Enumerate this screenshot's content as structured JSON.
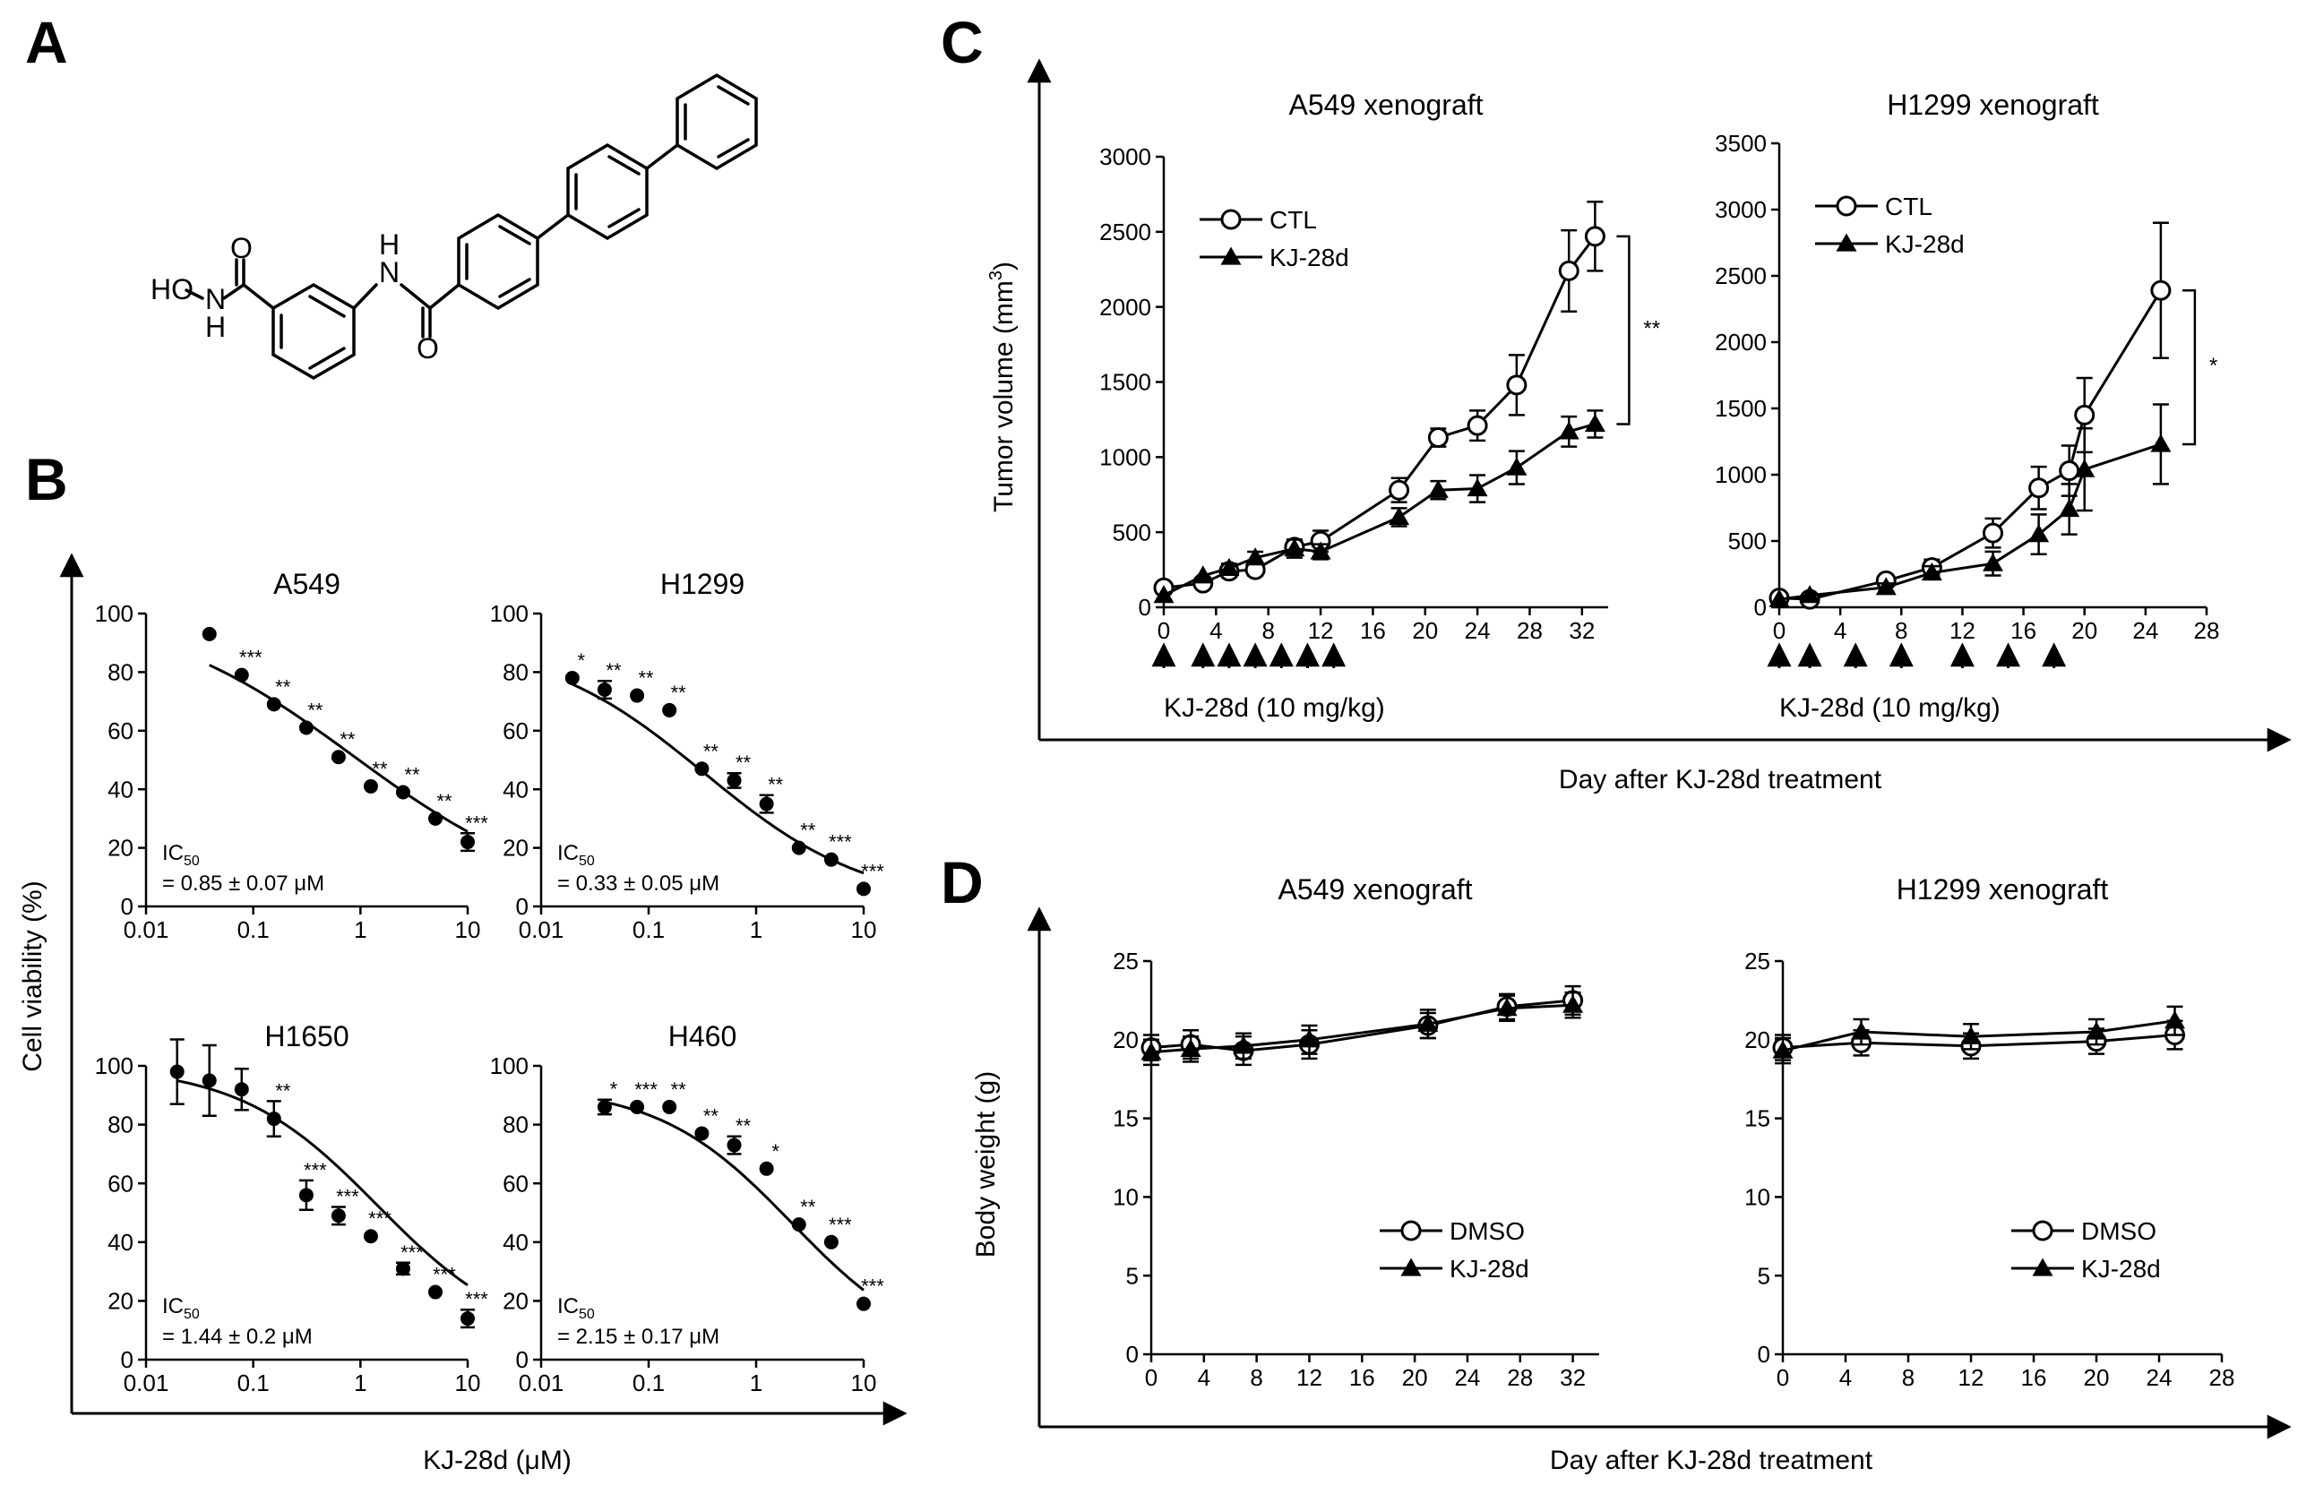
{
  "figure": {
    "panel_letters": [
      "A",
      "B",
      "C",
      "D"
    ]
  },
  "structure": {
    "atom_labels": [
      "HO",
      "N",
      "H",
      "O",
      "N",
      "H",
      "O"
    ]
  },
  "chart_data": [
    {
      "id": "B-A549",
      "panel": "B",
      "type": "scatter",
      "title": "A549",
      "x_scale": "log",
      "xlim": [
        0.01,
        10
      ],
      "ylim": [
        0,
        100
      ],
      "x_ticks": [
        "0.01",
        "0.1",
        "1",
        "10"
      ],
      "y_ticks": [
        "0",
        "20",
        "40",
        "60",
        "80",
        "100"
      ],
      "x": [
        0.039,
        0.078,
        0.156,
        0.3125,
        0.625,
        1.25,
        2.5,
        5,
        10
      ],
      "y": [
        93,
        79,
        69,
        61,
        51,
        41,
        39,
        30,
        22
      ],
      "err": [
        0,
        0,
        0,
        0,
        0,
        0,
        0,
        0,
        3
      ],
      "sig": [
        "",
        "***",
        "**",
        "**",
        "**",
        "**",
        "**",
        "**",
        "***"
      ],
      "fit": {
        "top": 103,
        "bottom": 0,
        "ic50": 0.85,
        "hill": 0.45
      },
      "ic50_lines": [
        "IC",
        "= 0.85 ± 0.07 μM"
      ]
    },
    {
      "id": "B-H1299",
      "panel": "B",
      "type": "scatter",
      "title": "H1299",
      "x_scale": "log",
      "xlim": [
        0.01,
        10
      ],
      "ylim": [
        0,
        100
      ],
      "x_ticks": [
        "0.01",
        "0.1",
        "1",
        "10"
      ],
      "y_ticks": [
        "0",
        "20",
        "40",
        "60",
        "80",
        "100"
      ],
      "x": [
        0.0195,
        0.039,
        0.078,
        0.156,
        0.3125,
        0.625,
        1.25,
        2.5,
        5,
        10
      ],
      "y": [
        78,
        74,
        72,
        67,
        47,
        43,
        35,
        20,
        16,
        6
      ],
      "err": [
        0,
        3,
        0,
        0,
        0,
        2.5,
        3,
        0,
        0,
        0
      ],
      "sig": [
        "*",
        "**",
        "**",
        "**",
        "**",
        "**",
        "**",
        "**",
        "***",
        "***"
      ],
      "fit": {
        "top": 91,
        "bottom": 0,
        "ic50": 0.33,
        "hill": 0.57
      },
      "ic50_lines": [
        "IC",
        "= 0.33 ± 0.05 μM"
      ]
    },
    {
      "id": "B-H1650",
      "panel": "B",
      "type": "scatter",
      "title": "H1650",
      "x_scale": "log",
      "xlim": [
        0.01,
        10
      ],
      "ylim": [
        0,
        100
      ],
      "x_ticks": [
        "0.01",
        "0.1",
        "1",
        "10"
      ],
      "y_ticks": [
        "0",
        "20",
        "40",
        "60",
        "80",
        "100"
      ],
      "x": [
        0.0195,
        0.039,
        0.078,
        0.156,
        0.3125,
        0.625,
        1.25,
        2.5,
        5,
        10
      ],
      "y": [
        98,
        95,
        92,
        82,
        56,
        49,
        42,
        31,
        23,
        14
      ],
      "err": [
        11,
        12,
        7,
        6,
        5,
        3,
        0,
        2,
        0,
        3
      ],
      "sig": [
        "",
        "",
        "",
        "**",
        "***",
        "***",
        "***",
        "***",
        "***",
        "***"
      ],
      "fit": {
        "top": 100,
        "bottom": 5,
        "ic50": 1.44,
        "hill": 0.67
      },
      "ic50_lines": [
        "IC",
        "= 1.44 ± 0.2 μM"
      ]
    },
    {
      "id": "B-H460",
      "panel": "B",
      "type": "scatter",
      "title": "H460",
      "x_scale": "log",
      "xlim": [
        0.01,
        10
      ],
      "ylim": [
        0,
        100
      ],
      "x_ticks": [
        "0.01",
        "0.1",
        "1",
        "10"
      ],
      "y_ticks": [
        "0",
        "20",
        "40",
        "60",
        "80",
        "100"
      ],
      "x": [
        0.039,
        0.078,
        0.156,
        0.3125,
        0.625,
        1.25,
        2.5,
        5,
        10
      ],
      "y": [
        86,
        86,
        86,
        77,
        73,
        65,
        46,
        40,
        19
      ],
      "err": [
        2.5,
        0,
        0,
        0,
        3,
        0,
        0,
        0,
        0
      ],
      "sig": [
        "*",
        "***",
        "**",
        "**",
        "**",
        "*",
        "**",
        "***",
        "***"
      ],
      "fit": {
        "top": 93,
        "bottom": 0,
        "ic50": 2.15,
        "hill": 0.7
      },
      "ic50_lines": [
        "IC",
        "= 2.15 ± 0.17 μM"
      ]
    },
    {
      "id": "C-A549",
      "panel": "C",
      "type": "line",
      "title": "A549 xenograft",
      "xlim": [
        0,
        34
      ],
      "ylim": [
        0,
        3000
      ],
      "x_ticks": [
        "0",
        "4",
        "8",
        "12",
        "16",
        "20",
        "24",
        "28",
        "32"
      ],
      "y_ticks": [
        "0",
        "500",
        "1000",
        "1500",
        "2000",
        "2500",
        "3000"
      ],
      "series": [
        {
          "name": "CTL",
          "marker": "open-circle",
          "x": [
            0,
            3,
            5,
            7,
            10,
            12,
            18,
            21,
            24,
            27,
            31,
            33
          ],
          "y": [
            130,
            160,
            240,
            250,
            400,
            440,
            780,
            1130,
            1210,
            1480,
            2240,
            2470
          ],
          "err": [
            0,
            0,
            40,
            40,
            50,
            70,
            80,
            60,
            100,
            200,
            270,
            230
          ]
        },
        {
          "name": "KJ-28d",
          "marker": "filled-triangle",
          "x": [
            0,
            3,
            5,
            7,
            10,
            12,
            18,
            21,
            24,
            27,
            31,
            33
          ],
          "y": [
            80,
            210,
            260,
            330,
            390,
            370,
            600,
            780,
            790,
            930,
            1170,
            1220
          ],
          "err": [
            0,
            0,
            30,
            40,
            60,
            50,
            60,
            60,
            90,
            110,
            100,
            90
          ]
        }
      ],
      "arrow_days": [
        0,
        3,
        5,
        7,
        9,
        11,
        13
      ],
      "treatment_label": "KJ-28d (10 mg/kg)",
      "significance": "**"
    },
    {
      "id": "C-H1299",
      "panel": "C",
      "type": "line",
      "title": "H1299 xenograft",
      "xlim": [
        0,
        28
      ],
      "ylim": [
        0,
        3500
      ],
      "x_ticks": [
        "0",
        "4",
        "8",
        "12",
        "16",
        "20",
        "24",
        "28"
      ],
      "y_ticks": [
        "0",
        "500",
        "1000",
        "1500",
        "2000",
        "2500",
        "3000",
        "3500"
      ],
      "series": [
        {
          "name": "CTL",
          "marker": "open-circle",
          "x": [
            0,
            2,
            7,
            10,
            14,
            17,
            19,
            20,
            25
          ],
          "y": [
            70,
            60,
            200,
            300,
            560,
            900,
            1030,
            1450,
            2390
          ],
          "err": [
            0,
            0,
            40,
            60,
            110,
            160,
            190,
            280,
            510
          ]
        },
        {
          "name": "KJ-28d",
          "marker": "filled-triangle",
          "x": [
            0,
            2,
            7,
            10,
            14,
            17,
            19,
            20,
            25
          ],
          "y": [
            60,
            90,
            150,
            260,
            330,
            550,
            740,
            1040,
            1230
          ],
          "err": [
            0,
            0,
            30,
            50,
            90,
            150,
            190,
            310,
            300
          ]
        }
      ],
      "arrow_days": [
        0,
        2,
        5,
        8,
        12,
        15,
        18
      ],
      "treatment_label": "KJ-28d (10 mg/kg)",
      "significance": "*"
    },
    {
      "id": "D-A549",
      "panel": "D",
      "type": "line",
      "title": "A549 xenograft",
      "xlim": [
        0,
        34
      ],
      "ylim": [
        0,
        25
      ],
      "x_ticks": [
        "0",
        "4",
        "8",
        "12",
        "16",
        "20",
        "24",
        "28",
        "32"
      ],
      "y_ticks": [
        "0",
        "5",
        "10",
        "15",
        "20",
        "25"
      ],
      "series": [
        {
          "name": "DMSO",
          "marker": "open-circle",
          "x": [
            0,
            3,
            7,
            12,
            21,
            27,
            32
          ],
          "y": [
            19.5,
            19.7,
            19.3,
            19.7,
            20.9,
            22.1,
            22.5
          ],
          "err": [
            0.8,
            0.9,
            0.9,
            0.9,
            0.8,
            0.8,
            0.9
          ]
        },
        {
          "name": "KJ-28d",
          "marker": "filled-triangle",
          "x": [
            0,
            3,
            7,
            12,
            21,
            27,
            32
          ],
          "y": [
            19.2,
            19.4,
            19.6,
            20.0,
            21.0,
            22.0,
            22.2
          ],
          "err": [
            0.8,
            0.8,
            0.8,
            0.9,
            0.9,
            0.8,
            0.8
          ]
        }
      ]
    },
    {
      "id": "D-H1299",
      "panel": "D",
      "type": "line",
      "title": "H1299 xenograft",
      "xlim": [
        0,
        28
      ],
      "ylim": [
        0,
        25
      ],
      "x_ticks": [
        "0",
        "4",
        "8",
        "12",
        "16",
        "20",
        "24",
        "28"
      ],
      "y_ticks": [
        "0",
        "5",
        "10",
        "15",
        "20",
        "25"
      ],
      "series": [
        {
          "name": "DMSO",
          "marker": "open-circle",
          "x": [
            0,
            5,
            12,
            20,
            25
          ],
          "y": [
            19.5,
            19.8,
            19.6,
            19.9,
            20.3
          ],
          "err": [
            0.8,
            0.8,
            0.8,
            0.8,
            0.9
          ]
        },
        {
          "name": "KJ-28d",
          "marker": "filled-triangle",
          "x": [
            0,
            5,
            12,
            20,
            25
          ],
          "y": [
            19.3,
            20.5,
            20.2,
            20.5,
            21.2
          ],
          "err": [
            0.8,
            0.8,
            0.8,
            0.8,
            0.9
          ]
        }
      ]
    }
  ],
  "labels": {
    "b_ylabel": "Cell viability (%)",
    "b_xlabel": "KJ-28d (μM)",
    "ic50_sub": "50",
    "c_ylabel": "Tumor volume (mm",
    "c_ylabel_sup": "3",
    "c_ylabel_close": ")",
    "c_xlabel": "Day after KJ-28d treatment",
    "d_ylabel": "Body weight (g)",
    "d_xlabel": "Day after KJ-28d treatment"
  }
}
